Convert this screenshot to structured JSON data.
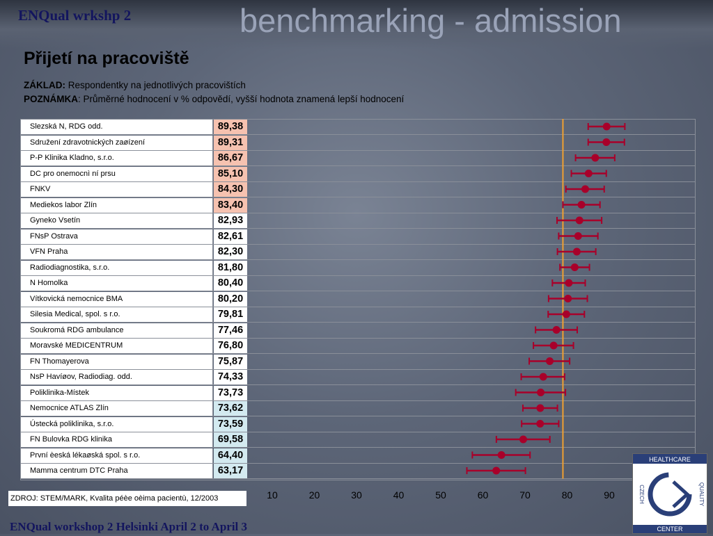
{
  "header": {
    "small_title": "ENQual wrkshp 2",
    "big_title": "benchmarking - admission"
  },
  "subtitle": "Přijetí na pracoviště",
  "notes": {
    "basis_label": "ZÁKLAD:",
    "basis_text": " Respondentky na jednotlivých pracovištích",
    "note_label": "POZNÁMKA",
    "note_text": ": Průměrné hodnocení v % odpovědí, vyšší hodnota znamená lepší hodnocení"
  },
  "source": "ZDROJ: STEM/MARK, Kvalita péèe oèima pacientù, 12/2003",
  "footer": "ENQual workshop 2 Helsinki April 2 to April 3",
  "logo": {
    "top": "HEALTHCARE",
    "left": "CZECH",
    "right": "QUALITY",
    "bottom": "CENTER"
  },
  "colors": {
    "marker": "#a8002a",
    "reference_line": "#f0a030",
    "high_cell": "#f6c2b0",
    "low_cell": "#d3eaf0"
  },
  "chart_data": {
    "type": "scatter",
    "xlim": [
      0,
      115
    ],
    "xticks": [
      10,
      20,
      30,
      40,
      50,
      60,
      70,
      80,
      90,
      100,
      110
    ],
    "reference_value": 79,
    "rows": [
      {
        "name": "Slezská N, RDG odd.",
        "value": "89,38",
        "mean": 89.38,
        "low": 85.0,
        "high": 93.7,
        "band": "high"
      },
      {
        "name": "Sdružení zdravotnických zaøízení",
        "value": "89,31",
        "mean": 89.31,
        "low": 85.0,
        "high": 93.6,
        "band": "high"
      },
      {
        "name": "P-P Klinika Kladno, s.r.o.",
        "value": "86,67",
        "mean": 86.67,
        "low": 82.0,
        "high": 91.3,
        "band": "high"
      },
      {
        "name": "DC pro onemocnì ní prsu",
        "value": "85,10",
        "mean": 85.1,
        "low": 81.0,
        "high": 89.3,
        "band": "high"
      },
      {
        "name": "FNKV",
        "value": "84,30",
        "mean": 84.3,
        "low": 79.7,
        "high": 88.8,
        "band": "high"
      },
      {
        "name": "Mediekos labor Zlín",
        "value": "83,40",
        "mean": 83.4,
        "low": 79.0,
        "high": 87.8,
        "band": "high"
      },
      {
        "name": "Gyneko Vsetín",
        "value": "82,93",
        "mean": 82.93,
        "low": 77.6,
        "high": 88.2,
        "band": "mid"
      },
      {
        "name": "FNsP Ostrava",
        "value": "82,61",
        "mean": 82.61,
        "low": 78.0,
        "high": 87.3,
        "band": "mid"
      },
      {
        "name": "VFN Praha",
        "value": "82,30",
        "mean": 82.3,
        "low": 77.7,
        "high": 86.8,
        "band": "mid"
      },
      {
        "name": "Radiodiagnostika, s.r.o.",
        "value": "81,80",
        "mean": 81.8,
        "low": 78.3,
        "high": 85.3,
        "band": "mid"
      },
      {
        "name": "N Homolka",
        "value": "80,40",
        "mean": 80.4,
        "low": 76.5,
        "high": 84.3,
        "band": "mid"
      },
      {
        "name": "Vítkovická nemocnice BMA",
        "value": "80,20",
        "mean": 80.2,
        "low": 75.6,
        "high": 84.8,
        "band": "mid"
      },
      {
        "name": "Silesia Medical, spol. s r.o.",
        "value": "79,81",
        "mean": 79.81,
        "low": 75.5,
        "high": 84.1,
        "band": "mid"
      },
      {
        "name": "Soukromá RDG ambulance",
        "value": "77,46",
        "mean": 77.46,
        "low": 72.5,
        "high": 82.4,
        "band": "mid"
      },
      {
        "name": "Moravské MEDICENTRUM",
        "value": "76,80",
        "mean": 76.8,
        "low": 72.0,
        "high": 81.5,
        "band": "mid"
      },
      {
        "name": "FN Thomayerova",
        "value": "75,87",
        "mean": 75.87,
        "low": 71.0,
        "high": 80.6,
        "band": "mid"
      },
      {
        "name": "NsP Havíøov, Radiodiag. odd.",
        "value": "74,33",
        "mean": 74.33,
        "low": 69.1,
        "high": 79.4,
        "band": "mid"
      },
      {
        "name": "Poliklinika-Místek",
        "value": "73,73",
        "mean": 73.73,
        "low": 67.8,
        "high": 79.6,
        "band": "mid"
      },
      {
        "name": "Nemocnice ATLAS Zlín",
        "value": "73,62",
        "mean": 73.62,
        "low": 69.5,
        "high": 77.7,
        "band": "low"
      },
      {
        "name": "Ústecká poliklinika, s.r.o.",
        "value": "73,59",
        "mean": 73.59,
        "low": 69.2,
        "high": 78.0,
        "band": "low"
      },
      {
        "name": "FN Bulovka RDG klinika",
        "value": "69,58",
        "mean": 69.58,
        "low": 63.2,
        "high": 75.9,
        "band": "low"
      },
      {
        "name": "První èeská lékaøská spol. s r.o.",
        "value": "64,40",
        "mean": 64.4,
        "low": 57.5,
        "high": 71.2,
        "band": "low"
      },
      {
        "name": "Mamma centrum DTC Praha",
        "value": "63,17",
        "mean": 63.17,
        "low": 56.2,
        "high": 70.1,
        "band": "low"
      }
    ]
  }
}
